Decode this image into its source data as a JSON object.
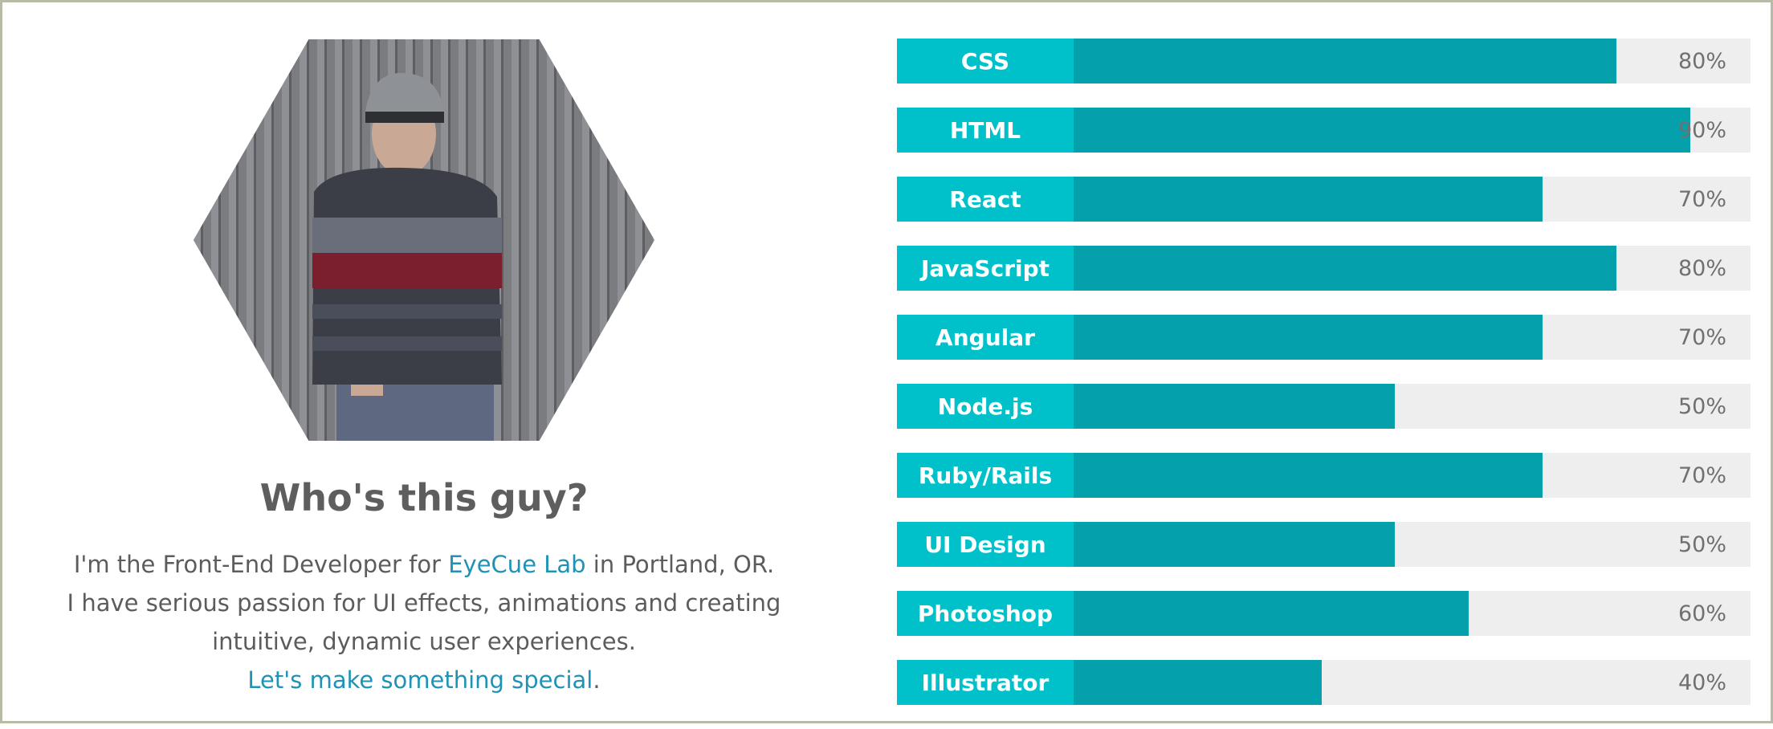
{
  "about": {
    "heading": "Who's this guy?",
    "line1_before": "I'm the Front-End Developer for ",
    "company_link": "EyeCue Lab",
    "line1_after": " in Portland, OR.",
    "line2": "I have serious passion for UI effects, animations and creating",
    "line3": "intuitive, dynamic user experiences.",
    "cta_link": "Let's make something special",
    "cta_period": "."
  },
  "skills": [
    {
      "label": "CSS",
      "percent_text": "80%",
      "percent": 80
    },
    {
      "label": "HTML",
      "percent_text": "90%",
      "percent": 90
    },
    {
      "label": "React",
      "percent_text": "70%",
      "percent": 70
    },
    {
      "label": "JavaScript",
      "percent_text": "80%",
      "percent": 80
    },
    {
      "label": "Angular",
      "percent_text": "70%",
      "percent": 70
    },
    {
      "label": "Node.js",
      "percent_text": "50%",
      "percent": 50
    },
    {
      "label": "Ruby/Rails",
      "percent_text": "70%",
      "percent": 70
    },
    {
      "label": "UI Design",
      "percent_text": "50%",
      "percent": 50
    },
    {
      "label": "Photoshop",
      "percent_text": "60%",
      "percent": 60
    },
    {
      "label": "Illustrator",
      "percent_text": "40%",
      "percent": 40
    }
  ],
  "colors": {
    "label_bg": "#00c1ca",
    "fill": "#04a1ac",
    "track": "#eeeeee",
    "link": "#1f93b6",
    "heading": "#5e5e5e"
  }
}
